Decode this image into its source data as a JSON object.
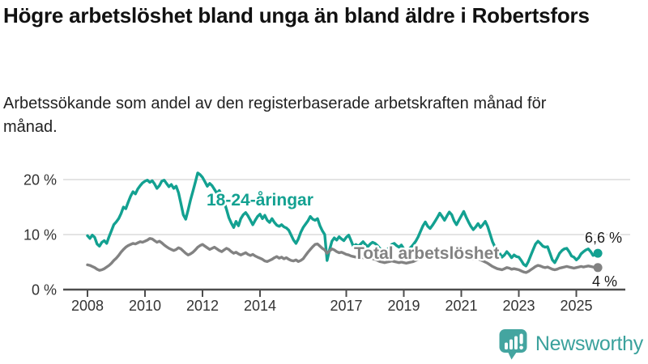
{
  "header": {
    "title": "Högre arbetslöshet bland unga än bland äldre i Robertsfors",
    "subtitle": "Arbetssökande som andel av den registerbaserade arbetskraften månad för månad."
  },
  "chart_data": {
    "type": "line",
    "x_unit": "month",
    "x_start_year": 2008,
    "x_end_label": "2025",
    "ylim": [
      0,
      22
    ],
    "grid": "horizontal-only",
    "legend_position": "inline-labels",
    "x_tick_years": [
      2008,
      2010,
      2012,
      2014,
      2017,
      2019,
      2021,
      2023,
      2025
    ],
    "y_ticks": [
      {
        "value": 20,
        "label": "20 %"
      },
      {
        "value": 10,
        "label": "10 %"
      },
      {
        "value": 0,
        "label": "0 %"
      }
    ],
    "series": [
      {
        "name": "18-24-åringar",
        "color": "#13a191",
        "end_label": "6,6 %",
        "latest_value": 6.6,
        "values": [
          9.8,
          9.3,
          9.9,
          9.5,
          8.3,
          7.9,
          8.6,
          8.9,
          8.4,
          9.6,
          10.7,
          11.8,
          12.3,
          12.9,
          13.8,
          15.0,
          14.7,
          15.9,
          17.0,
          17.8,
          17.4,
          18.3,
          18.9,
          19.4,
          19.7,
          19.9,
          19.5,
          19.8,
          19.2,
          18.4,
          18.9,
          19.7,
          19.9,
          19.3,
          18.7,
          19.1,
          18.4,
          18.8,
          17.6,
          15.6,
          13.6,
          12.8,
          14.5,
          16.3,
          17.9,
          19.5,
          21.2,
          20.9,
          20.4,
          19.6,
          18.8,
          19.3,
          18.9,
          18.2,
          17.5,
          18.0,
          17.2,
          16.0,
          14.6,
          13.1,
          12.1,
          11.3,
          12.4,
          11.6,
          12.9,
          13.6,
          14.0,
          13.4,
          12.6,
          11.8,
          12.6,
          13.3,
          13.7,
          12.9,
          13.5,
          12.6,
          12.2,
          12.9,
          12.2,
          11.7,
          11.5,
          11.8,
          11.4,
          11.2,
          10.8,
          9.9,
          9.0,
          8.4,
          9.2,
          10.4,
          11.3,
          11.9,
          12.5,
          13.3,
          12.8,
          12.6,
          12.9,
          11.6,
          10.7,
          10.0,
          5.3,
          7.2,
          8.8,
          9.4,
          9.0,
          9.6,
          9.2,
          8.9,
          9.5,
          9.9,
          8.9,
          7.8,
          8.2,
          7.9,
          8.3,
          8.7,
          8.2,
          7.8,
          8.3,
          8.6,
          8.4,
          8.0,
          7.5,
          7.1,
          6.8,
          7.2,
          7.7,
          8.2,
          8.4,
          8.0,
          7.7,
          8.1,
          7.4,
          6.9,
          7.3,
          7.7,
          8.2,
          8.8,
          9.6,
          10.6,
          11.6,
          12.3,
          11.5,
          11.1,
          11.7,
          12.4,
          13.1,
          13.9,
          13.3,
          12.6,
          13.4,
          14.1,
          13.6,
          12.5,
          11.8,
          12.6,
          13.4,
          14.2,
          13.2,
          12.3,
          11.5,
          10.9,
          11.4,
          12.0,
          11.3,
          11.8,
          12.4,
          11.5,
          10.1,
          8.7,
          7.8,
          7.2,
          6.6,
          5.9,
          6.3,
          6.9,
          6.4,
          5.8,
          6.3,
          6.0,
          5.9,
          5.3,
          4.6,
          4.3,
          5.1,
          6.2,
          7.3,
          8.3,
          8.8,
          8.4,
          7.9,
          7.7,
          7.8,
          6.6,
          5.4,
          4.9,
          5.7,
          6.6,
          7.1,
          7.4,
          7.5,
          6.9,
          6.1,
          5.9,
          5.4,
          5.8,
          6.5,
          6.9,
          7.2,
          7.4,
          6.9,
          6.2,
          6.4,
          6.6
        ]
      },
      {
        "name": "Total arbetslöshet",
        "color": "#828282",
        "end_label": "4 %",
        "latest_value": 4.0,
        "values": [
          4.5,
          4.4,
          4.2,
          4.0,
          3.7,
          3.5,
          3.6,
          3.8,
          4.1,
          4.4,
          4.8,
          5.3,
          5.7,
          6.2,
          6.8,
          7.3,
          7.7,
          8.0,
          8.2,
          8.4,
          8.3,
          8.5,
          8.7,
          8.6,
          8.8,
          9.0,
          9.3,
          9.2,
          8.9,
          8.6,
          8.8,
          8.5,
          8.1,
          7.8,
          7.5,
          7.3,
          7.1,
          7.3,
          7.6,
          7.4,
          7.0,
          6.6,
          6.3,
          6.5,
          6.8,
          7.2,
          7.7,
          8.0,
          8.2,
          7.9,
          7.6,
          7.3,
          7.5,
          7.7,
          7.4,
          7.1,
          6.9,
          7.2,
          7.5,
          7.3,
          6.9,
          6.6,
          6.8,
          6.5,
          6.3,
          6.5,
          6.7,
          6.4,
          6.2,
          6.4,
          6.1,
          5.9,
          5.7,
          5.5,
          5.2,
          5.1,
          5.3,
          5.5,
          5.8,
          6.0,
          5.7,
          5.9,
          5.6,
          5.8,
          5.5,
          5.3,
          5.2,
          5.4,
          5.1,
          5.3,
          5.6,
          6.2,
          6.8,
          7.3,
          7.8,
          8.2,
          8.3,
          7.9,
          7.5,
          7.2,
          6.6,
          7.0,
          7.4,
          7.2,
          6.9,
          6.7,
          6.8,
          6.6,
          6.4,
          6.3,
          6.1,
          6.0,
          5.9,
          6.0,
          5.9,
          5.8,
          5.7,
          5.6,
          5.7,
          5.6,
          5.5,
          5.3,
          5.1,
          5.0,
          4.9,
          5.0,
          5.1,
          5.2,
          5.1,
          5.0,
          4.9,
          5.0,
          4.9,
          4.8,
          4.9,
          5.0,
          5.1,
          5.3,
          5.5,
          5.7,
          5.9,
          6.0,
          5.9,
          6.0,
          6.1,
          6.3,
          6.6,
          6.9,
          7.0,
          6.9,
          7.0,
          6.9,
          6.8,
          6.6,
          6.5,
          6.6,
          6.5,
          6.4,
          6.2,
          6.0,
          5.8,
          5.6,
          5.7,
          5.6,
          5.4,
          5.2,
          5.0,
          4.8,
          4.5,
          4.2,
          4.0,
          3.8,
          3.7,
          3.6,
          3.8,
          4.0,
          3.9,
          3.7,
          3.8,
          3.7,
          3.6,
          3.4,
          3.2,
          3.1,
          3.3,
          3.6,
          3.9,
          4.2,
          4.4,
          4.3,
          4.1,
          4.0,
          4.1,
          3.9,
          3.7,
          3.6,
          3.7,
          3.9,
          4.0,
          4.1,
          4.2,
          4.1,
          4.0,
          3.9,
          4.0,
          4.1,
          4.2,
          4.1,
          4.2,
          4.3,
          4.2,
          4.1,
          4.0,
          4.0
        ]
      }
    ]
  },
  "footer": {
    "brand": "Newsworthy",
    "logo_icon": "bar-chart-speech-bubble",
    "logo_color": "#44a5a0",
    "brand_text_color": "#3aa19c"
  },
  "colors": {
    "background": "#ffffff",
    "title": "#111111",
    "subtitle": "#222222",
    "axis": "#4d4d4d",
    "gridline": "#dcdcdc",
    "tick_label": "#333333",
    "annotation": "#1a1a1a"
  }
}
